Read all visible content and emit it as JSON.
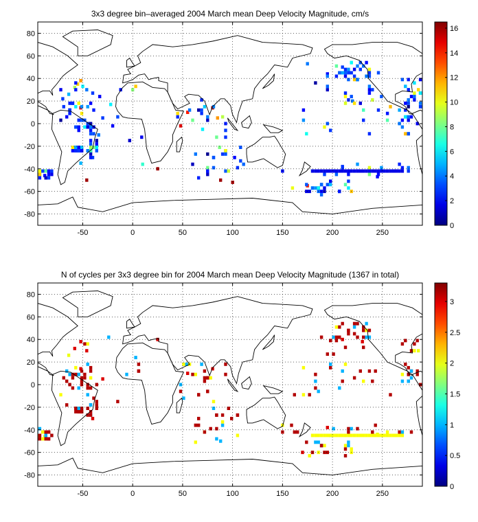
{
  "figure": {
    "panels": [
      {
        "title": "3x3 degree bin–averaged 2004 March mean Deep Velocity Magnitude, cm/s",
        "x_ticks": [
          "-50",
          "0",
          "50",
          "100",
          "150",
          "200",
          "250"
        ],
        "y_ticks": [
          "80",
          "60",
          "40",
          "20",
          "0",
          "-20",
          "-40",
          "-60",
          "-80"
        ],
        "colorbar_ticks": [
          "16",
          "14",
          "12",
          "10",
          "8",
          "6",
          "4",
          "2",
          "0"
        ],
        "colorbar_range": [
          0,
          16.5
        ],
        "seed": 11
      },
      {
        "title": "N of cycles per 3x3 degree bin for 2004 March mean Deep Velocity Magnitude (1367 in total)",
        "x_ticks": [
          "-50",
          "0",
          "50",
          "100",
          "150",
          "200",
          "250"
        ],
        "y_ticks": [
          "80",
          "60",
          "40",
          "20",
          "0",
          "-20",
          "-40",
          "-60",
          "-80"
        ],
        "colorbar_ticks": [
          "3",
          "2.5",
          "2",
          "1.5",
          "1",
          "0.5",
          "0"
        ],
        "colorbar_range": [
          0,
          3.3
        ],
        "seed": 29
      }
    ]
  },
  "chart_data": {
    "type": "heatmap",
    "xlim": [
      -95,
      290
    ],
    "ylim": [
      -90,
      90
    ],
    "grid": true,
    "colormap": "jet",
    "panels": [
      {
        "name": "3x3 degree bin–averaged 2004 March mean Deep Velocity Magnitude, cm/s",
        "cells": [
          {
            "lon": -58,
            "lat": 32,
            "v": 9
          },
          {
            "lon": -55,
            "lat": 35,
            "v": 11
          },
          {
            "lon": -52,
            "lat": 38,
            "v": 12
          },
          {
            "lon": -50,
            "lat": 33,
            "v": 6
          },
          {
            "lon": -46,
            "lat": 30,
            "v": 4
          },
          {
            "lon": -40,
            "lat": 27,
            "v": 3
          },
          {
            "lon": -64,
            "lat": 26,
            "v": 5
          },
          {
            "lon": -70,
            "lat": 22,
            "v": 3
          },
          {
            "lon": -60,
            "lat": 18,
            "v": 2
          },
          {
            "lon": -52,
            "lat": 14,
            "v": 15
          },
          {
            "lon": -22,
            "lat": 17,
            "v": 6
          },
          {
            "lon": -30,
            "lat": 5,
            "v": 3
          },
          {
            "lon": -20,
            "lat": -2,
            "v": 2
          },
          {
            "lon": -34,
            "lat": -10,
            "v": 4
          },
          {
            "lon": -40,
            "lat": -30,
            "v": 3
          },
          {
            "lon": -52,
            "lat": -35,
            "v": 5
          },
          {
            "lon": -88,
            "lat": -46,
            "v": 2
          },
          {
            "lon": -46,
            "lat": -50,
            "v": 16
          },
          {
            "lon": 10,
            "lat": -36,
            "v": 7
          },
          {
            "lon": 25,
            "lat": -40,
            "v": 16
          },
          {
            "lon": 55,
            "lat": 10,
            "v": 14
          },
          {
            "lon": 48,
            "lat": -2,
            "v": 15
          },
          {
            "lon": 60,
            "lat": 3,
            "v": 8
          },
          {
            "lon": 80,
            "lat": 14,
            "v": 16
          },
          {
            "lon": 85,
            "lat": 5,
            "v": 12
          },
          {
            "lon": 70,
            "lat": -5,
            "v": 6
          },
          {
            "lon": 88,
            "lat": -50,
            "v": 16
          },
          {
            "lon": 100,
            "lat": -52,
            "v": 16
          },
          {
            "lon": 160,
            "lat": -57,
            "v": 10
          },
          {
            "lon": 175,
            "lat": -55,
            "v": 14
          },
          {
            "lon": 195,
            "lat": 44,
            "v": 2
          },
          {
            "lon": 210,
            "lat": 50,
            "v": 3
          },
          {
            "lon": 175,
            "lat": 53,
            "v": 4
          },
          {
            "lon": 220,
            "lat": 20,
            "v": 4
          },
          {
            "lon": 210,
            "lat": -38,
            "v": 3
          },
          {
            "lon": 245,
            "lat": -47,
            "v": 2
          },
          {
            "lon": 286,
            "lat": 30,
            "v": 11
          }
        ]
      },
      {
        "name": "N of cycles per 3x3 degree bin for 2004 March mean Deep Velocity Magnitude (1367 in total)",
        "cells": [
          {
            "lon": -58,
            "lat": 32,
            "v": 3
          },
          {
            "lon": -52,
            "lat": 38,
            "v": 3
          },
          {
            "lon": -46,
            "lat": 30,
            "v": 3
          },
          {
            "lon": -64,
            "lat": 26,
            "v": 2
          },
          {
            "lon": -52,
            "lat": 14,
            "v": 3
          },
          {
            "lon": -30,
            "lat": 5,
            "v": 3
          },
          {
            "lon": -40,
            "lat": -30,
            "v": 3
          },
          {
            "lon": -88,
            "lat": -46,
            "v": 2
          },
          {
            "lon": 25,
            "lat": 40,
            "v": 3
          },
          {
            "lon": 55,
            "lat": 10,
            "v": 3
          },
          {
            "lon": 80,
            "lat": 14,
            "v": 3
          },
          {
            "lon": 88,
            "lat": -50,
            "v": 1
          },
          {
            "lon": 170,
            "lat": -60,
            "v": 3
          },
          {
            "lon": 195,
            "lat": -38,
            "v": 3
          },
          {
            "lon": 210,
            "lat": 40,
            "v": 3
          },
          {
            "lon": 230,
            "lat": 38,
            "v": 3
          },
          {
            "lon": 245,
            "lat": -44,
            "v": 2
          },
          {
            "lon": 286,
            "lat": 30,
            "v": 2
          }
        ]
      }
    ]
  }
}
